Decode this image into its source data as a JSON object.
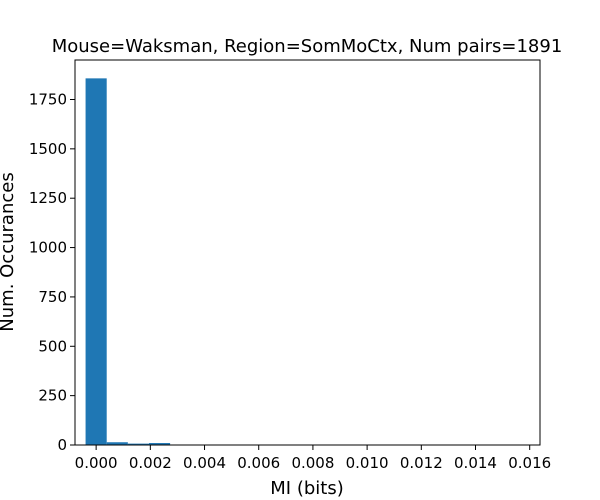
{
  "chart_data": {
    "type": "bar",
    "title": "Mouse=Waksman, Region=SomMoCtx, Num pairs=1891",
    "xlabel": "MI (bits)",
    "ylabel": "Num. Occurances",
    "xlim": [
      -0.00078,
      0.01638
    ],
    "ylim": [
      0,
      1950
    ],
    "grid": false,
    "bar_color": "#1f77b4",
    "bin_edges": [
      -0.00039,
      0.00039,
      0.00117,
      0.00195,
      0.00273,
      0.00351,
      0.00429,
      0.00507,
      0.00585,
      0.00663,
      0.00741,
      0.00819,
      0.00897,
      0.00975,
      0.01053,
      0.01131,
      0.01209,
      0.01287,
      0.01365,
      0.01443,
      0.01521,
      0.01599
    ],
    "values": [
      1857,
      14,
      7,
      10,
      2,
      0,
      0,
      1,
      0,
      0,
      0,
      0,
      0,
      0,
      0,
      0,
      0,
      0,
      0,
      0,
      0
    ],
    "xticks": [
      0.0,
      0.002,
      0.004,
      0.006,
      0.008,
      0.01,
      0.012,
      0.014,
      0.016
    ],
    "xtick_labels": [
      "0.000",
      "0.002",
      "0.004",
      "0.006",
      "0.008",
      "0.010",
      "0.012",
      "0.014",
      "0.016"
    ],
    "yticks": [
      0,
      250,
      500,
      750,
      1000,
      1250,
      1500,
      1750
    ],
    "ytick_labels": [
      "0",
      "250",
      "500",
      "750",
      "1000",
      "1250",
      "1500",
      "1750"
    ]
  }
}
